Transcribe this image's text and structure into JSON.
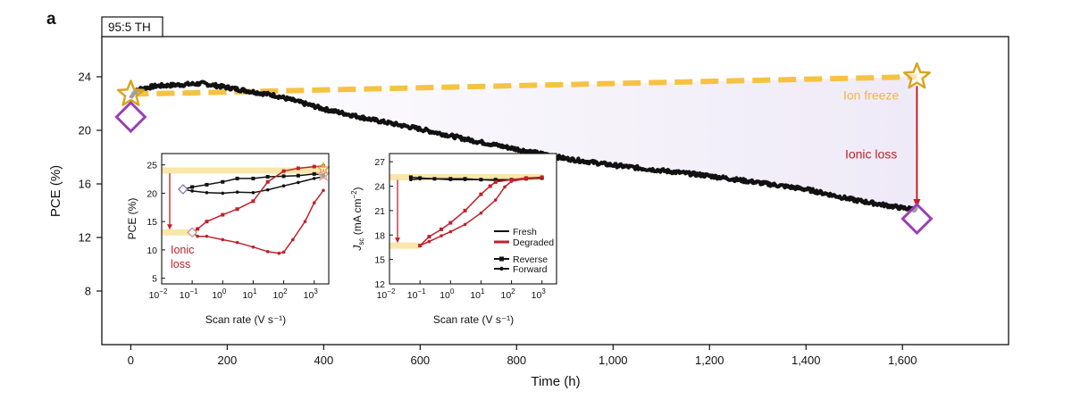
{
  "panel_label": "a",
  "chart_data": [
    {
      "type": "line",
      "tag": "95:5 TH",
      "xlabel": "Time (h)",
      "ylabel": "PCE (%)",
      "xlim": [
        -60,
        1820
      ],
      "ylim": [
        4,
        27
      ],
      "xticks": [
        0,
        200,
        400,
        600,
        800,
        1000,
        1200,
        1400,
        1600
      ],
      "xtick_labels": [
        "0",
        "200",
        "400",
        "600",
        "800",
        "1,000",
        "1,200",
        "1,400",
        "1,600"
      ],
      "yticks": [
        8,
        12,
        16,
        20,
        24
      ],
      "yticks_labels": [
        "8",
        "12",
        "16",
        "20",
        "24"
      ],
      "series": [
        {
          "color": "#111111",
          "points": [
            [
              0,
              22.4
            ],
            [
              5,
              22.8
            ],
            [
              20,
              23.1
            ],
            [
              50,
              23.3
            ],
            [
              100,
              23.4
            ],
            [
              150,
              23.5
            ],
            [
              200,
              23.2
            ],
            [
              250,
              22.9
            ],
            [
              300,
              22.6
            ],
            [
              350,
              22.1
            ],
            [
              400,
              21.6
            ],
            [
              500,
              20.8
            ],
            [
              600,
              20.1
            ],
            [
              700,
              19.3
            ],
            [
              800,
              18.6
            ],
            [
              900,
              17.9
            ],
            [
              1000,
              17.4
            ],
            [
              1100,
              17.0
            ],
            [
              1200,
              16.6
            ],
            [
              1300,
              16.1
            ],
            [
              1400,
              15.6
            ],
            [
              1500,
              14.8
            ],
            [
              1600,
              14.2
            ],
            [
              1630,
              14.1
            ]
          ]
        },
        {
          "color": "#f5c242",
          "dashed": true,
          "points": [
            [
              0,
              22.7
            ],
            [
              1630,
              24.0
            ]
          ]
        }
      ],
      "markers": [
        {
          "shape": "star",
          "color": "#d9a520",
          "x": 0,
          "y": 22.7
        },
        {
          "shape": "star",
          "color": "#d9a520",
          "x": 1630,
          "y": 24.0
        },
        {
          "shape": "diamond",
          "color": "#9b3fb5",
          "x": 0,
          "y": 21.0
        },
        {
          "shape": "diamond",
          "color": "#9b3fb5",
          "x": 1630,
          "y": 13.4
        }
      ],
      "annotations": [
        {
          "text": "Ion freeze",
          "color": "#f2b63c",
          "x": 1535,
          "y": 22.3
        },
        {
          "text": "Ionic loss",
          "color": "#c0202a",
          "x": 1535,
          "y": 17.9
        }
      ],
      "arrow": {
        "color": "#c0202a",
        "x": 1630,
        "from": 23.3,
        "to": 14.2
      }
    },
    {
      "type": "line",
      "xscale": "log",
      "xlabel": "Scan rate (V s⁻¹)",
      "ylabel": "PCE (%)",
      "xlim": [
        0.01,
        3000
      ],
      "ylim": [
        4,
        27
      ],
      "yticks": [
        5,
        10,
        15,
        20,
        25
      ],
      "ytick_labels": [
        "5",
        "10",
        "15",
        "20",
        "25"
      ],
      "xtick_exponents": [
        "−2",
        "−1",
        "0",
        "1",
        "2",
        "3"
      ],
      "xtick_base": "10",
      "zero_tick_label": "10",
      "series": [
        {
          "name": "fresh-reverse",
          "color": "#111111",
          "x": [
            0.05,
            0.1,
            0.3,
            1,
            3,
            10,
            30,
            100,
            300,
            1000,
            2000
          ],
          "y": [
            20.7,
            21.1,
            21.5,
            22.0,
            22.6,
            22.6,
            22.9,
            23.0,
            23.1,
            23.4,
            23.2
          ]
        },
        {
          "name": "fresh-forward",
          "color": "#111111",
          "x": [
            0.05,
            0.1,
            0.3,
            1,
            3,
            10,
            30,
            100,
            300,
            1000,
            2000
          ],
          "y": [
            20.7,
            20.4,
            20.1,
            20.0,
            20.2,
            20.1,
            20.6,
            21.3,
            21.9,
            22.6,
            22.9
          ]
        },
        {
          "name": "degraded-reverse",
          "color": "#c0202a",
          "x": [
            0.1,
            0.15,
            0.3,
            1,
            3,
            10,
            30,
            100,
            300,
            1000,
            2000
          ],
          "y": [
            13.1,
            13.7,
            15.0,
            16.2,
            17.2,
            18.6,
            22.0,
            23.9,
            24.4,
            24.7,
            24.8
          ]
        },
        {
          "name": "degraded-forward",
          "color": "#c0202a",
          "x": [
            0.1,
            0.15,
            0.3,
            1,
            3,
            10,
            30,
            70,
            100,
            200,
            500,
            1000,
            2000
          ],
          "y": [
            13.1,
            12.4,
            12.4,
            11.8,
            11.3,
            10.5,
            9.7,
            9.4,
            9.6,
            11.8,
            15.0,
            18.3,
            20.5
          ]
        }
      ],
      "annotations": [
        {
          "text_lines": [
            "Ionic",
            "loss"
          ],
          "color": "#c0202a"
        }
      ]
    },
    {
      "type": "line",
      "xscale": "log",
      "ylabel_main": "J",
      "ylabel_sub": "sc",
      "ylabel_rest": " (mA cm",
      "ylabel_sup": "−2",
      "ylabel_end": ")",
      "xlabel": "Scan rate (V s⁻¹)",
      "xlim": [
        0.01,
        3000
      ],
      "ylim": [
        12,
        28
      ],
      "yticks": [
        12,
        15,
        18,
        21,
        24,
        27
      ],
      "ytick_labels": [
        "12",
        "15",
        "18",
        "21",
        "24",
        "27"
      ],
      "xtick_exponents": [
        "−2",
        "−1",
        "0",
        "1",
        "2",
        "3"
      ],
      "xtick_base": "10",
      "series": [
        {
          "name": "fresh-reverse",
          "color": "#111111",
          "x": [
            0.05,
            0.1,
            0.3,
            1,
            3,
            10,
            30,
            100,
            300,
            1000
          ],
          "y": [
            25.1,
            25.0,
            24.9,
            24.9,
            24.9,
            24.8,
            24.8,
            24.8,
            24.9,
            25.0
          ]
        },
        {
          "name": "fresh-forward",
          "color": "#111111",
          "x": [
            0.05,
            0.1,
            0.3,
            1,
            3,
            10,
            30,
            100,
            300,
            1000
          ],
          "y": [
            24.8,
            24.9,
            24.9,
            24.8,
            24.8,
            24.8,
            24.7,
            24.8,
            24.9,
            25.0
          ]
        },
        {
          "name": "degraded-reverse",
          "color": "#c0202a",
          "x": [
            0.1,
            0.2,
            0.5,
            1,
            3,
            10,
            20,
            30,
            100,
            300,
            1000
          ],
          "y": [
            16.7,
            17.8,
            18.7,
            19.5,
            21.0,
            23.0,
            24.0,
            24.5,
            24.8,
            25.0,
            25.1
          ]
        },
        {
          "name": "degraded-forward",
          "color": "#c0202a",
          "x": [
            0.1,
            0.2,
            0.5,
            1,
            3,
            10,
            30,
            60,
            100,
            300,
            1000
          ],
          "y": [
            16.7,
            17.2,
            17.9,
            18.4,
            19.3,
            20.7,
            22.3,
            23.9,
            24.6,
            24.9,
            25.1
          ]
        }
      ],
      "legend": [
        {
          "label": "Fresh",
          "color": "#111111"
        },
        {
          "label": "Degraded",
          "color": "#c0202a"
        },
        {
          "label": "Reverse",
          "color": "#111111",
          "marker": "square"
        },
        {
          "label": "Forward",
          "color": "#111111",
          "marker": "circle"
        }
      ]
    }
  ]
}
